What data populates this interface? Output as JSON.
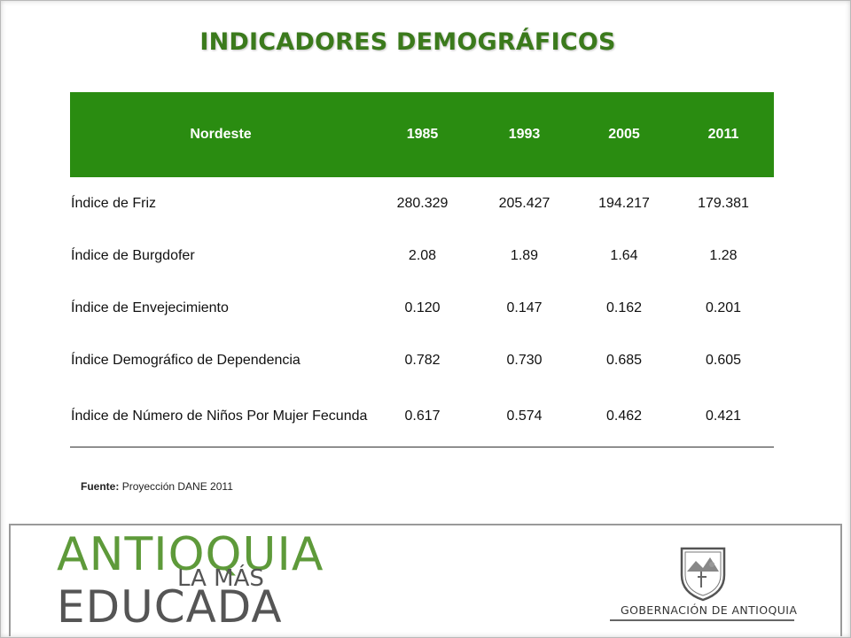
{
  "title": "INDICADORES DEMOGRÁFICOS",
  "table": {
    "headers": [
      "Nordeste",
      "1985",
      "1993",
      "2005",
      "2011"
    ],
    "rows": [
      {
        "label": "Índice de Friz",
        "values": [
          "280.329",
          "205.427",
          "194.217",
          "179.381"
        ]
      },
      {
        "label": "Índice de Burgdofer",
        "values": [
          "2.08",
          "1.89",
          "1.64",
          "1.28"
        ]
      },
      {
        "label": "Índice de Envejecimiento",
        "values": [
          "0.120",
          "0.147",
          "0.162",
          "0.201"
        ]
      },
      {
        "label": "Índice Demográfico de Dependencia",
        "values": [
          "0.782",
          "0.730",
          "0.685",
          "0.605"
        ]
      },
      {
        "label": "Índice de Número de Niños Por Mujer Fecunda",
        "values": [
          "0.617",
          "0.574",
          "0.462",
          "0.421"
        ]
      }
    ]
  },
  "source": {
    "prefix": "Fuente:",
    "text": "Proyección DANE 2011"
  },
  "footer": {
    "logo_line1": "ANTIOQUIA",
    "logo_line2": "LA MÁS",
    "logo_line3": "EDUCADA",
    "gov_label": "GOBERNACIÓN DE ANTIOQUIA"
  },
  "colors": {
    "header_bg": "#2a8c11",
    "title": "#3b7a1c",
    "logo_green": "#5e9a3a"
  }
}
